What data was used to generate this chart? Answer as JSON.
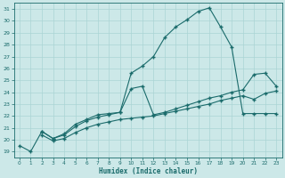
{
  "title": "",
  "xlabel": "Humidex (Indice chaleur)",
  "xlim": [
    -0.5,
    23.5
  ],
  "ylim": [
    18.5,
    31.5
  ],
  "yticks": [
    19,
    20,
    21,
    22,
    23,
    24,
    25,
    26,
    27,
    28,
    29,
    30,
    31
  ],
  "xticks": [
    0,
    1,
    2,
    3,
    4,
    5,
    6,
    7,
    8,
    9,
    10,
    11,
    12,
    13,
    14,
    15,
    16,
    17,
    18,
    19,
    20,
    21,
    22,
    23
  ],
  "bg_color": "#cce8e8",
  "grid_color": "#aad4d4",
  "line_color": "#1a6b6b",
  "line1_x": [
    0,
    1,
    2,
    3,
    4,
    5,
    6,
    7,
    8,
    9,
    10,
    11,
    12,
    13,
    14,
    15,
    16,
    17,
    18,
    19,
    20,
    21,
    22,
    23
  ],
  "line1_y": [
    19.5,
    19.0,
    20.7,
    20.1,
    20.5,
    21.3,
    21.7,
    22.1,
    22.2,
    22.3,
    25.6,
    26.2,
    27.0,
    28.6,
    29.5,
    30.1,
    30.8,
    31.1,
    29.5,
    27.8,
    22.2,
    22.2,
    22.2,
    22.2
  ],
  "line2_x": [
    2,
    3,
    4,
    5,
    6,
    7,
    8,
    9,
    10,
    11,
    12,
    13,
    14,
    15,
    16,
    17,
    18,
    19,
    20,
    21,
    22,
    23
  ],
  "line2_y": [
    20.7,
    20.1,
    20.4,
    21.1,
    21.6,
    21.9,
    22.1,
    22.3,
    24.3,
    24.5,
    22.1,
    22.3,
    22.6,
    22.9,
    23.2,
    23.5,
    23.7,
    24.0,
    24.2,
    25.5,
    25.6,
    24.5
  ],
  "line3_x": [
    2,
    3,
    4,
    5,
    6,
    7,
    8,
    9,
    10,
    11,
    12,
    13,
    14,
    15,
    16,
    17,
    18,
    19,
    20,
    21,
    22,
    23
  ],
  "line3_y": [
    20.4,
    19.9,
    20.1,
    20.6,
    21.0,
    21.3,
    21.5,
    21.7,
    21.8,
    21.9,
    22.0,
    22.2,
    22.4,
    22.6,
    22.8,
    23.0,
    23.3,
    23.5,
    23.7,
    23.4,
    23.9,
    24.1
  ],
  "markersize": 2.0,
  "linewidth": 0.8
}
